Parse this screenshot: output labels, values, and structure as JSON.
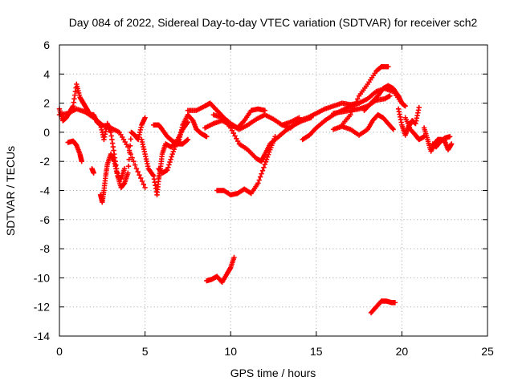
{
  "chart_data": {
    "type": "scatter",
    "title": "Day 084 of 2022, Sidereal Day-to-day VTEC variation (SDTVAR) for receiver sch2",
    "xlabel": "GPS time / hours",
    "ylabel": "SDTVAR / TECUs",
    "xlim": [
      0,
      25
    ],
    "ylim": [
      -14,
      6
    ],
    "xticks": [
      0,
      5,
      10,
      15,
      20,
      25
    ],
    "yticks": [
      -14,
      -12,
      -10,
      -8,
      -6,
      -4,
      -2,
      0,
      2,
      4,
      6
    ],
    "grid": true,
    "marker": "plus",
    "series": [
      {
        "name": "SDTVAR",
        "color": "#ff0000",
        "tracks": [
          [
            [
              0,
              1.6
            ],
            [
              0.2,
              0.8
            ],
            [
              0.4,
              1.0
            ],
            [
              0.6,
              1.4
            ],
            [
              0.8,
              1.8
            ],
            [
              1.0,
              3.3
            ],
            [
              1.2,
              2.4
            ],
            [
              1.4,
              2.0
            ],
            [
              1.6,
              1.6
            ],
            [
              1.8,
              1.2
            ],
            [
              2.0,
              1.2
            ],
            [
              2.2,
              0.7
            ],
            [
              2.4,
              0.5
            ],
            [
              2.6,
              -0.5
            ],
            [
              2.8,
              0.6
            ],
            [
              3.0,
              0.0
            ],
            [
              3.2,
              -1.5
            ],
            [
              3.4,
              -3.0
            ],
            [
              3.6,
              -3.8
            ],
            [
              3.8,
              -3.5
            ],
            [
              4.0,
              -2.8
            ],
            [
              4.2,
              0.0
            ],
            [
              4.4,
              -0.2
            ],
            [
              4.6,
              -0.5
            ],
            [
              4.8,
              0.5
            ],
            [
              5.0,
              1.0
            ]
          ],
          [
            [
              0,
              1.2
            ],
            [
              0.5,
              1.3
            ],
            [
              1.0,
              1.6
            ],
            [
              1.5,
              1.4
            ],
            [
              2.0,
              1.0
            ],
            [
              2.5,
              0.5
            ],
            [
              3.0,
              0.3
            ],
            [
              3.5,
              0.0
            ],
            [
              4.0,
              -1.0
            ],
            [
              4.5,
              -2.5
            ],
            [
              5.0,
              -3.8
            ]
          ],
          [
            [
              0.5,
              -0.7
            ],
            [
              0.8,
              -0.6
            ],
            [
              1.0,
              -0.9
            ],
            [
              1.2,
              -1.5
            ],
            [
              1.3,
              -2.0
            ]
          ],
          [
            [
              1.9,
              -2.5
            ],
            [
              2.0,
              -2.8
            ]
          ],
          [
            [
              2.4,
              -4.3
            ],
            [
              2.5,
              -4.8
            ],
            [
              2.6,
              -4.0
            ],
            [
              2.7,
              -3.0
            ],
            [
              2.8,
              -2.2
            ],
            [
              3.0,
              -1.5
            ],
            [
              3.2,
              -2.0
            ],
            [
              3.4,
              -3.0
            ],
            [
              3.6,
              -3.2
            ],
            [
              3.8,
              -2.5
            ]
          ],
          [
            [
              4.8,
              -0.5
            ],
            [
              5.0,
              -1.5
            ],
            [
              5.2,
              -2.5
            ],
            [
              5.5,
              -3.0
            ],
            [
              5.7,
              -4.3
            ],
            [
              5.8,
              -3.2
            ],
            [
              5.9,
              -2.5
            ],
            [
              6.0,
              -1.5
            ],
            [
              6.2,
              -0.8
            ],
            [
              6.5,
              -1.0
            ],
            [
              6.8,
              -0.8
            ],
            [
              7.0,
              -0.5
            ],
            [
              7.2,
              0.5
            ],
            [
              7.5,
              1.2
            ],
            [
              7.8,
              0.8
            ],
            [
              8.0,
              0.2
            ],
            [
              8.3,
              -0.1
            ],
            [
              8.6,
              -0.3
            ]
          ],
          [
            [
              5.5,
              0.5
            ],
            [
              5.8,
              0.5
            ],
            [
              6.0,
              0.2
            ],
            [
              6.3,
              -0.3
            ],
            [
              6.6,
              -0.6
            ],
            [
              6.9,
              -0.8
            ],
            [
              7.2,
              -0.8
            ],
            [
              7.5,
              -0.5
            ]
          ],
          [
            [
              5.8,
              -2.5
            ],
            [
              6.0,
              -2.8
            ],
            [
              6.3,
              -2.6
            ],
            [
              6.6,
              -1.5
            ],
            [
              6.9,
              -0.5
            ],
            [
              7.2,
              0.2
            ],
            [
              7.5,
              0.7
            ]
          ],
          [
            [
              7.5,
              1.5
            ],
            [
              8.0,
              1.5
            ],
            [
              8.5,
              1.8
            ],
            [
              8.8,
              2.0
            ],
            [
              9.2,
              1.5
            ],
            [
              9.6,
              1.0
            ],
            [
              10.0,
              0.6
            ],
            [
              10.4,
              0.3
            ],
            [
              10.8,
              0.8
            ],
            [
              11.2,
              1.5
            ],
            [
              11.6,
              1.6
            ],
            [
              12.0,
              1.5
            ]
          ],
          [
            [
              8.5,
              0.3
            ],
            [
              9.0,
              0.6
            ],
            [
              9.5,
              0.8
            ],
            [
              10.0,
              0.5
            ],
            [
              10.5,
              0.2
            ],
            [
              11.0,
              0.5
            ],
            [
              11.5,
              0.9
            ],
            [
              12.0,
              1.2
            ],
            [
              12.5,
              0.9
            ],
            [
              13.0,
              0.5
            ],
            [
              13.5,
              0.7
            ],
            [
              14.0,
              1.0
            ]
          ],
          [
            [
              9.0,
              1.2
            ],
            [
              9.5,
              1.0
            ],
            [
              10.0,
              0.3
            ],
            [
              10.5,
              -0.8
            ],
            [
              11.0,
              -1.2
            ],
            [
              11.5,
              -1.8
            ],
            [
              11.8,
              -2.0
            ],
            [
              12.0,
              -1.5
            ],
            [
              12.3,
              -0.8
            ],
            [
              12.7,
              -0.4
            ],
            [
              13.2,
              0.1
            ],
            [
              13.7,
              0.5
            ],
            [
              14.2,
              0.8
            ],
            [
              14.7,
              1.0
            ]
          ],
          [
            [
              9.2,
              -4.0
            ],
            [
              9.6,
              -4.0
            ],
            [
              10.0,
              -4.3
            ],
            [
              10.4,
              -4.2
            ],
            [
              10.8,
              -3.9
            ],
            [
              11.2,
              -4.2
            ],
            [
              11.6,
              -3.5
            ],
            [
              12.0,
              -2.2
            ],
            [
              12.3,
              -1.2
            ],
            [
              12.6,
              -0.3
            ]
          ],
          [
            [
              13.0,
              0.5
            ],
            [
              13.5,
              0.3
            ],
            [
              14.0,
              0.8
            ],
            [
              14.5,
              1.0
            ],
            [
              15.0,
              1.3
            ],
            [
              15.5,
              1.6
            ],
            [
              16.0,
              1.8
            ],
            [
              16.5,
              2.0
            ],
            [
              17.0,
              1.9
            ],
            [
              17.5,
              2.0
            ]
          ],
          [
            [
              14.2,
              -0.5
            ],
            [
              14.6,
              -0.2
            ],
            [
              15.0,
              0.3
            ],
            [
              15.5,
              0.8
            ],
            [
              16.0,
              1.2
            ],
            [
              16.5,
              1.5
            ],
            [
              17.0,
              1.8
            ],
            [
              17.5,
              2.0
            ],
            [
              18.0,
              2.3
            ],
            [
              18.5,
              2.8
            ],
            [
              19.0,
              3.0
            ],
            [
              19.5,
              2.8
            ],
            [
              20.0,
              2.0
            ]
          ],
          [
            [
              16.5,
              0.5
            ],
            [
              17.0,
              1.2
            ],
            [
              17.5,
              2.5
            ],
            [
              18.0,
              3.3
            ],
            [
              18.5,
              4.2
            ],
            [
              18.8,
              4.5
            ],
            [
              19.2,
              4.5
            ]
          ],
          [
            [
              16.0,
              1.3
            ],
            [
              16.5,
              1.4
            ],
            [
              17.0,
              1.5
            ],
            [
              17.5,
              1.6
            ],
            [
              18.0,
              1.8
            ],
            [
              18.5,
              2.2
            ],
            [
              19.0,
              2.3
            ],
            [
              19.3,
              2.5
            ]
          ],
          [
            [
              17.8,
              1.5
            ],
            [
              18.2,
              2.0
            ],
            [
              18.6,
              2.5
            ],
            [
              18.9,
              3.0
            ],
            [
              19.2,
              3.2
            ],
            [
              19.5,
              3.0
            ],
            [
              19.8,
              2.5
            ],
            [
              20.0,
              2.0
            ],
            [
              20.2,
              1.8
            ]
          ],
          [
            [
              16.0,
              0.2
            ],
            [
              16.5,
              0.4
            ],
            [
              17.0,
              0.2
            ],
            [
              17.5,
              -0.2
            ],
            [
              18.0,
              0.2
            ],
            [
              18.3,
              0.8
            ],
            [
              18.6,
              1.2
            ],
            [
              18.9,
              1.0
            ],
            [
              19.2,
              0.6
            ],
            [
              19.5,
              0.2
            ]
          ],
          [
            [
              19.8,
              1.6
            ],
            [
              20.0,
              0.5
            ],
            [
              20.2,
              -0.2
            ],
            [
              20.4,
              0.4
            ],
            [
              20.6,
              0.8
            ],
            [
              20.8,
              0.6
            ],
            [
              21.0,
              1.7
            ]
          ],
          [
            [
              20.2,
              1.0
            ],
            [
              20.5,
              0.2
            ],
            [
              20.8,
              -0.2
            ],
            [
              21.0,
              -0.5
            ],
            [
              21.3,
              -0.3
            ]
          ],
          [
            [
              21.3,
              0.3
            ],
            [
              21.5,
              -0.5
            ],
            [
              21.7,
              -1.3
            ],
            [
              21.9,
              -0.8
            ],
            [
              22.1,
              -0.5
            ],
            [
              22.3,
              -0.5
            ],
            [
              22.5,
              -0.6
            ],
            [
              22.7,
              -1.2
            ],
            [
              22.9,
              -0.8
            ]
          ],
          [
            [
              21.8,
              -0.8
            ],
            [
              22.0,
              -1.0
            ],
            [
              22.2,
              -0.7
            ],
            [
              22.5,
              -0.4
            ],
            [
              22.8,
              -0.3
            ]
          ],
          [
            [
              8.6,
              -10.2
            ],
            [
              8.9,
              -10.1
            ],
            [
              9.2,
              -9.9
            ],
            [
              9.5,
              -10.3
            ],
            [
              9.8,
              -9.7
            ],
            [
              10.0,
              -9.3
            ],
            [
              10.2,
              -8.6
            ]
          ],
          [
            [
              18.2,
              -12.4
            ],
            [
              18.5,
              -12.0
            ],
            [
              18.8,
              -11.6
            ],
            [
              19.1,
              -11.6
            ],
            [
              19.4,
              -11.7
            ],
            [
              19.6,
              -11.7
            ]
          ]
        ]
      }
    ]
  }
}
